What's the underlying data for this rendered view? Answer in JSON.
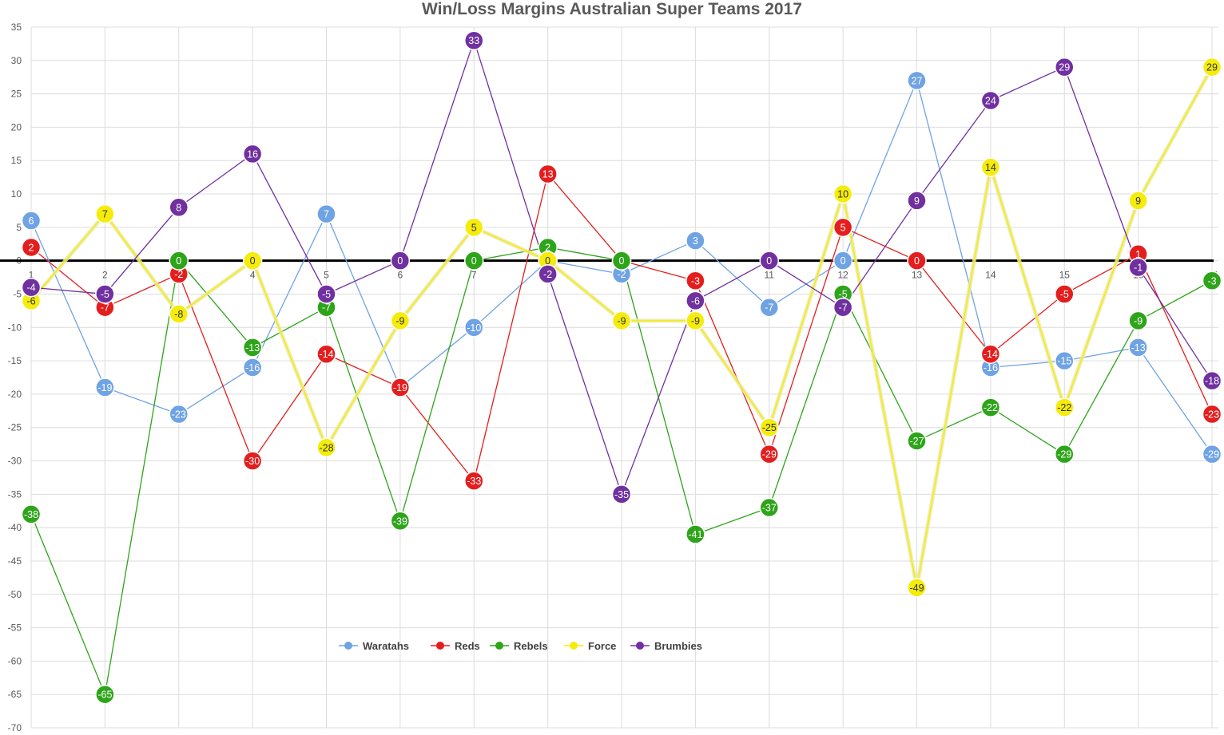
{
  "chart_data": {
    "type": "line",
    "title": "Win/Loss Margins Australian Super Teams 2017",
    "xlabel": "",
    "ylabel": "",
    "ylim": [
      -70,
      35
    ],
    "yticks": [
      35,
      30,
      25,
      20,
      15,
      10,
      5,
      0,
      -5,
      -10,
      -15,
      -20,
      -25,
      -30,
      -35,
      -40,
      -45,
      -50,
      -55,
      -60,
      -65,
      -70
    ],
    "x": [
      1,
      2,
      3,
      4,
      5,
      6,
      7,
      8,
      9,
      10,
      11,
      12,
      13,
      14,
      15,
      16,
      17
    ],
    "xtick_labels": [
      "1",
      "2",
      "",
      "4",
      "5",
      "6",
      "7",
      "",
      "",
      "",
      "11",
      "12",
      "13",
      "14",
      "15",
      "16",
      "17"
    ],
    "grid": true,
    "legend_position": "bottom-center",
    "series": [
      {
        "name": "Waratahs",
        "color": "#6fa3e3",
        "values": [
          6,
          -19,
          -23,
          -16,
          7,
          -19,
          -10,
          0,
          -2,
          3,
          -7,
          0,
          27,
          -16,
          -15,
          -13,
          -29
        ]
      },
      {
        "name": "Reds",
        "color": "#e41e1e",
        "values": [
          2,
          -7,
          -2,
          -30,
          -14,
          -19,
          -33,
          13,
          0,
          -3,
          -29,
          5,
          0,
          -14,
          -5,
          1,
          -23
        ]
      },
      {
        "name": "Rebels",
        "color": "#2ea41a",
        "values": [
          -38,
          -65,
          0,
          -13,
          -7,
          -39,
          0,
          2,
          0,
          -41,
          -37,
          -5,
          -27,
          -22,
          -29,
          -9,
          -3
        ]
      },
      {
        "name": "Force",
        "color": "#f5ec0c",
        "values": [
          -6,
          7,
          -8,
          0,
          -28,
          -9,
          5,
          0,
          -9,
          -9,
          -25,
          10,
          -49,
          14,
          -22,
          9,
          29
        ]
      },
      {
        "name": "Brumbies",
        "color": "#7030a0",
        "values": [
          -4,
          -5,
          8,
          16,
          -5,
          0,
          33,
          -2,
          -35,
          -6,
          0,
          -7,
          9,
          24,
          29,
          -1,
          -18
        ]
      }
    ]
  }
}
